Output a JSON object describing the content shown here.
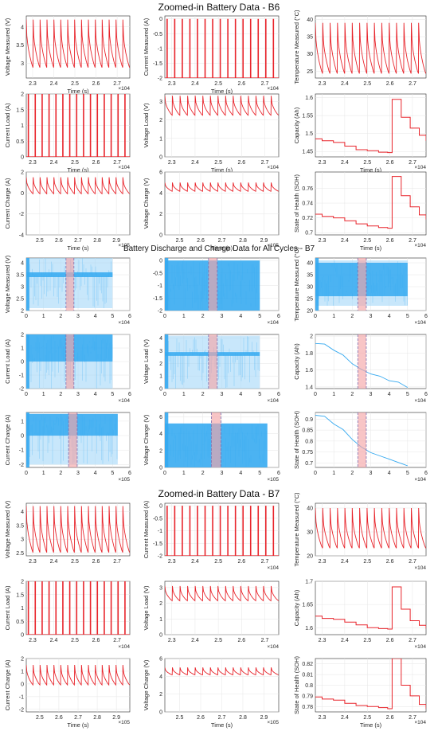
{
  "sections": [
    {
      "title": "Zoomed-in Battery Data - B6"
    },
    {
      "title": "Battery Discharge and Charge Data for All Cycles - B7"
    },
    {
      "title": "Zoomed-in Battery Data - B7"
    }
  ],
  "colors": {
    "zoom_line": "#e8242b",
    "all_line": "#35a9f0",
    "all_line_faint": "#9bd4f8",
    "highlight_fill": "#f4a6a8",
    "highlight_line": "#7b6fb3",
    "grid": "#e6e6e6"
  },
  "chart_data": [
    {
      "type": "line",
      "shape": "periodic",
      "ylabel": "Voltage Measured (V)",
      "xlabel": "Time (s)",
      "xticks": [
        "2.3",
        "2.4",
        "2.5",
        "2.6",
        "2.7"
      ],
      "xlim": [
        22700,
        27600
      ],
      "exponent": "×10^4",
      "yticks": [
        "3",
        "3.5",
        "4"
      ],
      "ylim": [
        2.6,
        4.3
      ],
      "cycles": 15,
      "base": 2.95,
      "peak": 4.2
    },
    {
      "type": "line",
      "shape": "spikes",
      "ylabel": "Current Measured (A)",
      "xlabel": "Time (s)",
      "xticks": [
        "2.3",
        "2.4",
        "2.5",
        "2.6",
        "2.7"
      ],
      "xlim": [
        22700,
        27600
      ],
      "exponent": "×10^4",
      "yticks": [
        "-2",
        "-1.5",
        "-1",
        "-0.5",
        "0"
      ],
      "ylim": [
        -2,
        0.1
      ],
      "cycles": 15,
      "base": -2,
      "peak": 0
    },
    {
      "type": "line",
      "shape": "periodic",
      "ylabel": "Temperature Measured (°C)",
      "xlabel": "",
      "xticks": [
        "2.3",
        "2.4",
        "2.5",
        "2.6",
        "2.7"
      ],
      "xlim": [
        22700,
        27600
      ],
      "exponent": "",
      "yticks": [
        "25",
        "30",
        "35",
        "40"
      ],
      "ylim": [
        23,
        41
      ],
      "cycles": 15,
      "base": 25,
      "peak": 39
    },
    {
      "type": "line",
      "shape": "spikes",
      "ylabel": "Current Load (A)",
      "xlabel": "Time (s)",
      "xticks": [
        "2.3",
        "2.4",
        "2.5",
        "2.6",
        "2.7"
      ],
      "xlim": [
        22700,
        27600
      ],
      "exponent": "×10^4",
      "yticks": [
        "0",
        "0.5",
        "1",
        "1.5",
        "2"
      ],
      "ylim": [
        0,
        2
      ],
      "cycles": 15,
      "base": 0,
      "peak": 2
    },
    {
      "type": "line",
      "shape": "periodic",
      "ylabel": "Voltage Load (V)",
      "xlabel": "Time (s)",
      "xticks": [
        "2.3",
        "2.4",
        "2.5",
        "2.6",
        "2.7"
      ],
      "xlim": [
        22700,
        27600
      ],
      "exponent": "×10^4",
      "yticks": [
        "0",
        "1",
        "2",
        "3"
      ],
      "ylim": [
        0,
        3.4
      ],
      "cycles": 15,
      "base": 2.3,
      "peak": 3.3
    },
    {
      "type": "line",
      "shape": "step",
      "ylabel": "Capacity (Ah)",
      "xlabel": "Time (s)",
      "xticks": [
        "2.3",
        "2.4",
        "2.5",
        "2.6",
        "2.7"
      ],
      "xlim": [
        22700,
        27600
      ],
      "exponent": "×10^4",
      "yticks": [
        "1.45",
        "1.5",
        "1.55",
        "1.6"
      ],
      "ylim": [
        1.435,
        1.61
      ],
      "x": [
        22700,
        23000,
        23500,
        24000,
        24500,
        25000,
        25500,
        25900,
        26100,
        26500,
        26900,
        27300,
        27600
      ],
      "values": [
        1.485,
        1.48,
        1.475,
        1.465,
        1.455,
        1.452,
        1.448,
        1.447,
        1.595,
        1.545,
        1.515,
        1.495,
        1.48
      ]
    },
    {
      "type": "line",
      "shape": "periodic",
      "ylabel": "Current Charge (A)",
      "xlabel": "Time (s)",
      "xticks": [
        "2.5",
        "2.6",
        "2.7",
        "2.8",
        "2.9"
      ],
      "xlim": [
        243000,
        297000
      ],
      "exponent": "×10^5",
      "yticks": [
        "-4",
        "-2",
        "0",
        "2"
      ],
      "ylim": [
        -4,
        2
      ],
      "cycles": 15,
      "base": 0,
      "peak": 1.5
    },
    {
      "type": "line",
      "shape": "periodic",
      "ylabel": "Voltage Charge (V)",
      "xlabel": "Time (s)",
      "xticks": [
        "2.5",
        "2.6",
        "2.7",
        "2.8",
        "2.9"
      ],
      "xlim": [
        243000,
        297000
      ],
      "exponent": "×10^5",
      "yticks": [
        "0",
        "2",
        "4",
        "6"
      ],
      "ylim": [
        0,
        6
      ],
      "cycles": 15,
      "base": 4.2,
      "peak": 5
    },
    {
      "type": "line",
      "shape": "step",
      "ylabel": "State of Health (SOH)",
      "xlabel": "Time (s)",
      "xticks": [
        "2.3",
        "2.4",
        "2.5",
        "2.6",
        "2.7"
      ],
      "xlim": [
        22700,
        27600
      ],
      "exponent": "×10^4",
      "yticks": [
        "0.7",
        "0.72",
        "0.74",
        "0.76"
      ],
      "ylim": [
        0.697,
        0.782
      ],
      "x": [
        22700,
        23000,
        23500,
        24000,
        24500,
        25000,
        25500,
        25900,
        26100,
        26500,
        26900,
        27300,
        27600
      ],
      "values": [
        0.725,
        0.722,
        0.72,
        0.716,
        0.712,
        0.709,
        0.707,
        0.706,
        0.776,
        0.75,
        0.735,
        0.724,
        0.718
      ]
    },
    {
      "type": "line",
      "shape": "dense",
      "ylabel": "Voltage Measured (V)",
      "xlabel": "",
      "xticks": [
        "0",
        "1",
        "2",
        "3",
        "4",
        "5",
        "6"
      ],
      "xlim": [
        0,
        60000
      ],
      "exponent": "×10^4",
      "yticks": [
        "2",
        "2.5",
        "3",
        "3.5",
        "4"
      ],
      "ylim": [
        2,
        4.2
      ],
      "dataEnd": 50000,
      "band": [
        3.4,
        3.6
      ],
      "low": 2.1,
      "high": 4.2,
      "span": [
        23000,
        27600
      ]
    },
    {
      "type": "line",
      "shape": "dense",
      "ylabel": "",
      "xlabel": "",
      "xticks": [
        "0",
        "1",
        "2",
        "3",
        "4",
        "5",
        "6"
      ],
      "xlim": [
        0,
        60000
      ],
      "exponent": "×10^4",
      "yticks": [
        "-2",
        "-1.5",
        "-1",
        "-0.5",
        "0"
      ],
      "ylim": [
        -2,
        0.1
      ],
      "dataEnd": 50000,
      "band": [
        -2,
        0
      ],
      "low": -2,
      "high": 0,
      "span": [
        23000,
        27600
      ]
    },
    {
      "type": "line",
      "shape": "dense",
      "ylabel": "Temperature Measured (°C)",
      "xlabel": "",
      "xticks": [
        "0",
        "1",
        "2",
        "3",
        "4",
        "5",
        "6"
      ],
      "xlim": [
        0,
        60000
      ],
      "exponent": "×10^4",
      "yticks": [
        "20",
        "25",
        "30",
        "35",
        "40"
      ],
      "ylim": [
        20,
        42
      ],
      "dataEnd": 50000,
      "band": [
        26,
        40
      ],
      "low": 22,
      "high": 41,
      "span": [
        23000,
        27600
      ]
    },
    {
      "type": "line",
      "shape": "dense",
      "ylabel": "Current Load (A)",
      "xlabel": "",
      "xticks": [
        "0",
        "1",
        "2",
        "3",
        "4",
        "5",
        "6"
      ],
      "xlim": [
        0,
        60000
      ],
      "exponent": "×10^4",
      "yticks": [
        "-2",
        "-1",
        "0",
        "1",
        "2"
      ],
      "ylim": [
        -2,
        2
      ],
      "dataEnd": 50000,
      "band": [
        0,
        2
      ],
      "low": -2,
      "high": 2,
      "span": [
        23000,
        27600
      ]
    },
    {
      "type": "line",
      "shape": "dense",
      "ylabel": "Voltage Load (V)",
      "xlabel": "",
      "xticks": [
        "0",
        "1",
        "2",
        "3",
        "4",
        "5",
        "6"
      ],
      "xlim": [
        0,
        60000
      ],
      "exponent": "×10^4",
      "yticks": [
        "0",
        "1",
        "2",
        "3",
        "4"
      ],
      "ylim": [
        0,
        4.3
      ],
      "dataEnd": 50000,
      "band": [
        2.6,
        2.9
      ],
      "low": 0,
      "high": 4.2,
      "span": [
        23000,
        27600
      ]
    },
    {
      "type": "line",
      "shape": "decline",
      "ylabel": "Capacity (Ah)",
      "xlabel": "",
      "xticks": [
        "0",
        "1",
        "2",
        "3",
        "4",
        "5",
        "6"
      ],
      "xlim": [
        0,
        60000
      ],
      "exponent": "×10^4",
      "yticks": [
        "1.4",
        "1.6",
        "1.8",
        "2"
      ],
      "ylim": [
        1.38,
        2.02
      ],
      "x": [
        0,
        5000,
        10000,
        15000,
        20000,
        25000,
        30000,
        35000,
        40000,
        45000,
        50000
      ],
      "values": [
        1.92,
        1.9,
        1.84,
        1.77,
        1.68,
        1.6,
        1.56,
        1.52,
        1.48,
        1.45,
        1.4
      ],
      "span": [
        23000,
        27600
      ]
    },
    {
      "type": "line",
      "shape": "dense",
      "ylabel": "Current Charge (A)",
      "xlabel": "",
      "xticks": [
        "0",
        "1",
        "2",
        "3",
        "4",
        "5",
        "6"
      ],
      "xlim": [
        0,
        600000
      ],
      "exponent": "×10^5",
      "yticks": [
        "-2",
        "-1",
        "0",
        "1"
      ],
      "ylim": [
        -2.2,
        1.6
      ],
      "dataEnd": 530000,
      "band": [
        0,
        1.5
      ],
      "low": -2,
      "high": 1.5,
      "span": [
        245000,
        295000
      ]
    },
    {
      "type": "line",
      "shape": "dense",
      "ylabel": "Voltage Charge (V)",
      "xlabel": "",
      "xticks": [
        "0",
        "1",
        "2",
        "3",
        "4",
        "5",
        "6"
      ],
      "xlim": [
        0,
        600000
      ],
      "exponent": "×10^5",
      "yticks": [
        "0",
        "2",
        "4",
        "6"
      ],
      "ylim": [
        0,
        6.5
      ],
      "dataEnd": 540000,
      "band": [
        0,
        5.2
      ],
      "low": 0,
      "high": 5.2,
      "span": [
        245000,
        295000
      ]
    },
    {
      "type": "line",
      "shape": "decline",
      "ylabel": "State of Health (SOH)",
      "xlabel": "",
      "xticks": [
        "0",
        "1",
        "2",
        "3",
        "4",
        "5",
        "6"
      ],
      "xlim": [
        0,
        60000
      ],
      "exponent": "×10^4",
      "yticks": [
        "0.7",
        "0.75",
        "0.8",
        "0.85",
        "0.9"
      ],
      "ylim": [
        0.68,
        0.93
      ],
      "x": [
        0,
        5000,
        10000,
        15000,
        20000,
        25000,
        30000,
        35000,
        40000,
        45000,
        50000
      ],
      "values": [
        0.92,
        0.91,
        0.88,
        0.85,
        0.81,
        0.77,
        0.75,
        0.73,
        0.72,
        0.7,
        0.69
      ],
      "span": [
        23000,
        27600
      ]
    },
    {
      "type": "line",
      "shape": "periodic",
      "ylabel": "Voltage Measured (V)",
      "xlabel": "",
      "xticks": [
        "2.3",
        "2.4",
        "2.5",
        "2.6",
        "2.7"
      ],
      "xlim": [
        22700,
        27600
      ],
      "exponent": "",
      "yticks": [
        "2.5",
        "3",
        "3.5",
        "4"
      ],
      "ylim": [
        2.4,
        4.3
      ],
      "cycles": 15,
      "base": 2.6,
      "peak": 4.2
    },
    {
      "type": "line",
      "shape": "spikes",
      "ylabel": "Current Measured (A)",
      "xlabel": "",
      "xticks": [
        "2.3",
        "2.4",
        "2.5",
        "2.6",
        "2.7"
      ],
      "xlim": [
        22700,
        27600
      ],
      "exponent": "×10^4",
      "yticks": [
        "-2",
        "-1.5",
        "-1",
        "-0.5",
        "0"
      ],
      "ylim": [
        -2,
        0.1
      ],
      "cycles": 15,
      "base": -2,
      "peak": 0
    },
    {
      "type": "line",
      "shape": "periodic",
      "ylabel": "Temperature Measured (°C)",
      "xlabel": "",
      "xticks": [
        "2.3",
        "2.4",
        "2.5",
        "2.6",
        "2.7"
      ],
      "xlim": [
        22700,
        27600
      ],
      "exponent": "×10^4",
      "yticks": [
        "20",
        "30",
        "40"
      ],
      "ylim": [
        20,
        42
      ],
      "cycles": 15,
      "base": 24,
      "peak": 40
    },
    {
      "type": "line",
      "shape": "spikes",
      "ylabel": "Current Load (A)",
      "xlabel": "",
      "xticks": [
        "2.3",
        "2.4",
        "2.5",
        "2.6",
        "2.7"
      ],
      "xlim": [
        22700,
        27600
      ],
      "exponent": "×10^4",
      "yticks": [
        "0",
        "0.5",
        "1",
        "1.5",
        "2"
      ],
      "ylim": [
        0,
        2
      ],
      "cycles": 15,
      "base": 0,
      "peak": 2
    },
    {
      "type": "line",
      "shape": "periodic",
      "ylabel": "Voltage Load (V)",
      "xlabel": "",
      "xticks": [
        "2.3",
        "2.4",
        "2.5",
        "2.6",
        "2.7"
      ],
      "xlim": [
        22700,
        27600
      ],
      "exponent": "×10^4",
      "yticks": [
        "0",
        "1",
        "2",
        "3"
      ],
      "ylim": [
        0,
        3.4
      ],
      "cycles": 15,
      "base": 2.2,
      "peak": 3.1
    },
    {
      "type": "line",
      "shape": "step",
      "ylabel": "Capacity (Ah)",
      "xlabel": "",
      "xticks": [
        "2.3",
        "2.4",
        "2.5",
        "2.6",
        "2.7"
      ],
      "xlim": [
        22700,
        27600
      ],
      "exponent": "×10^4",
      "yticks": [
        "1.6",
        "1.65",
        "1.7"
      ],
      "ylim": [
        1.585,
        1.7
      ],
      "x": [
        22700,
        23000,
        23500,
        24000,
        24500,
        25000,
        25500,
        25900,
        26100,
        26500,
        26900,
        27300,
        27600
      ],
      "values": [
        1.625,
        1.62,
        1.618,
        1.612,
        1.606,
        1.6,
        1.598,
        1.597,
        1.688,
        1.64,
        1.615,
        1.605,
        1.598
      ]
    },
    {
      "type": "line",
      "shape": "periodic",
      "ylabel": "Current Charge (A)",
      "xlabel": "Time (s)",
      "xticks": [
        "2.5",
        "2.6",
        "2.7",
        "2.8",
        "2.9"
      ],
      "xlim": [
        243000,
        297000
      ],
      "exponent": "×10^5",
      "yticks": [
        "-2",
        "-1",
        "0",
        "1",
        "2"
      ],
      "ylim": [
        -2.2,
        2
      ],
      "cycles": 15,
      "base": 0,
      "peak": 1.5
    },
    {
      "type": "line",
      "shape": "periodic",
      "ylabel": "Voltage Charge (V)",
      "xlabel": "Time (s)",
      "xticks": [
        "2.5",
        "2.6",
        "2.7",
        "2.8",
        "2.9"
      ],
      "xlim": [
        243000,
        297000
      ],
      "exponent": "×10^5",
      "yticks": [
        "0",
        "2",
        "4",
        "6"
      ],
      "ylim": [
        0,
        6
      ],
      "cycles": 15,
      "base": 4.2,
      "peak": 5
    },
    {
      "type": "line",
      "shape": "step",
      "ylabel": "State of Health (SOH)",
      "xlabel": "Time (s)",
      "xticks": [
        "2.3",
        "2.4",
        "2.5",
        "2.6",
        "2.7"
      ],
      "xlim": [
        22700,
        27600
      ],
      "exponent": "×10^4",
      "yticks": [
        "0.78",
        "0.79",
        "0.8",
        "0.81",
        "0.82"
      ],
      "ylim": [
        0.775,
        0.825
      ],
      "x": [
        22700,
        23000,
        23500,
        24000,
        24500,
        25000,
        25500,
        25900,
        26100,
        26500,
        26900,
        27300,
        27600
      ],
      "values": [
        0.789,
        0.787,
        0.786,
        0.783,
        0.781,
        0.78,
        0.779,
        0.778,
        0.825,
        0.8,
        0.79,
        0.782,
        0.778
      ]
    }
  ]
}
